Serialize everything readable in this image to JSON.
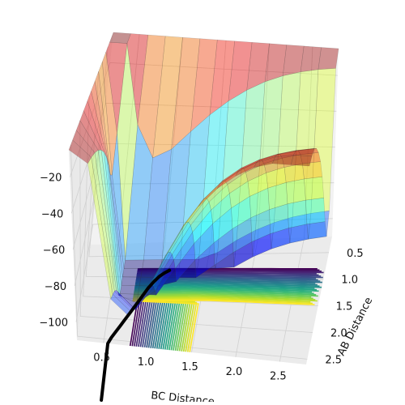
{
  "figure": {
    "background": "#ffffff",
    "pane_color": "#f2f2f2",
    "grid_color": "#d0d0d0"
  },
  "chart_data": {
    "type": "surface",
    "description_kind": "3d-potential-energy-surface-with-contours-and-trajectory",
    "xlabel": "BC Distance",
    "ylabel": "AB Distance",
    "zlabel": "",
    "x_ticks": [
      "0.5",
      "1.0",
      "1.5",
      "2.0",
      "2.5"
    ],
    "y_ticks": [
      "0.5",
      "1.0",
      "1.5",
      "2.0",
      "2.5"
    ],
    "z_ticks": [
      "−20",
      "−40",
      "−60",
      "−80",
      "−100"
    ],
    "xlim": [
      0.2,
      2.8
    ],
    "ylim": [
      0.2,
      2.6
    ],
    "zlim": [
      -110,
      -5
    ],
    "surface": {
      "colormap": "jet",
      "alpha": 0.4,
      "grid_x": [
        0.2,
        0.4,
        0.6,
        0.8,
        1.0,
        1.2,
        1.4,
        1.6,
        1.8,
        2.0,
        2.2,
        2.4,
        2.6,
        2.8
      ],
      "grid_y": [
        0.2,
        0.4,
        0.6,
        0.8,
        1.0,
        1.2,
        1.4,
        1.6,
        1.8,
        2.0,
        2.2,
        2.4,
        2.6
      ]
    },
    "contours": {
      "colormap": "viridis",
      "levels": 30,
      "offset_z": -110
    },
    "trajectory": {
      "color": "#000000",
      "linewidth": 4,
      "points_bc_ab": [
        [
          0.55,
          2.6
        ],
        [
          0.58,
          2.45
        ],
        [
          0.62,
          2.3
        ],
        [
          0.66,
          2.15
        ],
        [
          0.7,
          2.0
        ],
        [
          0.74,
          1.85
        ],
        [
          0.78,
          1.7
        ],
        [
          0.82,
          1.55
        ],
        [
          0.86,
          1.4
        ],
        [
          0.9,
          1.25
        ],
        [
          0.95,
          1.1
        ],
        [
          1.0,
          0.98
        ],
        [
          1.05,
          0.9
        ],
        [
          1.1,
          0.84
        ]
      ]
    }
  }
}
